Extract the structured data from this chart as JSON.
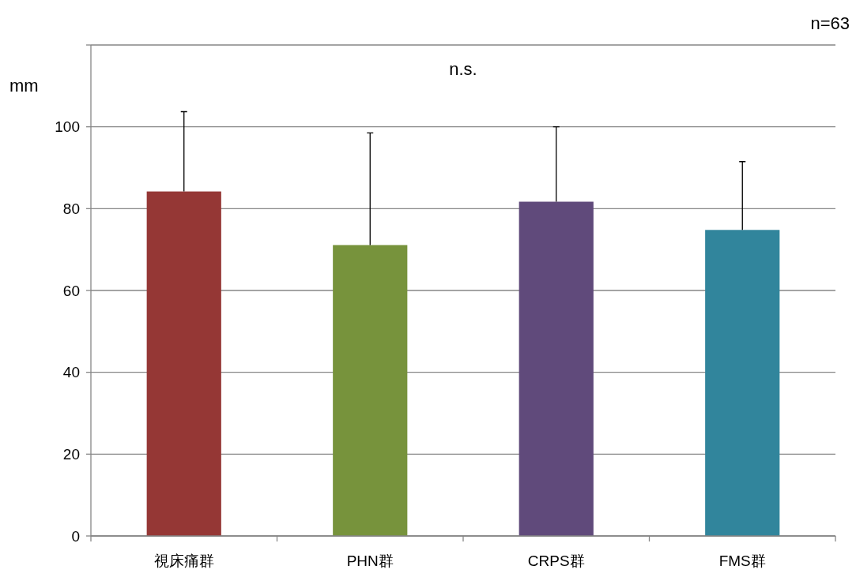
{
  "chart_data": {
    "type": "bar",
    "ylabel": "mm",
    "categories": [
      "視床痛群",
      "PHN群",
      "CRPS群",
      "FMS群"
    ],
    "values": [
      84.2,
      71.1,
      81.7,
      74.8
    ],
    "colors": [
      "#953735",
      "#77933c",
      "#604a7b",
      "#31859c"
    ],
    "errors": [
      [
        84.2,
        103.7
      ],
      [
        71.1,
        98.5
      ],
      [
        81.7,
        100.0
      ],
      [
        74.8,
        91.5
      ]
    ],
    "ylim": [
      0,
      120
    ],
    "yticks": [
      0,
      20,
      40,
      60,
      80,
      100,
      {
        "value": 120,
        "label": null
      }
    ],
    "grid": "y",
    "annotations": [
      "n.s.",
      "n=63"
    ]
  }
}
